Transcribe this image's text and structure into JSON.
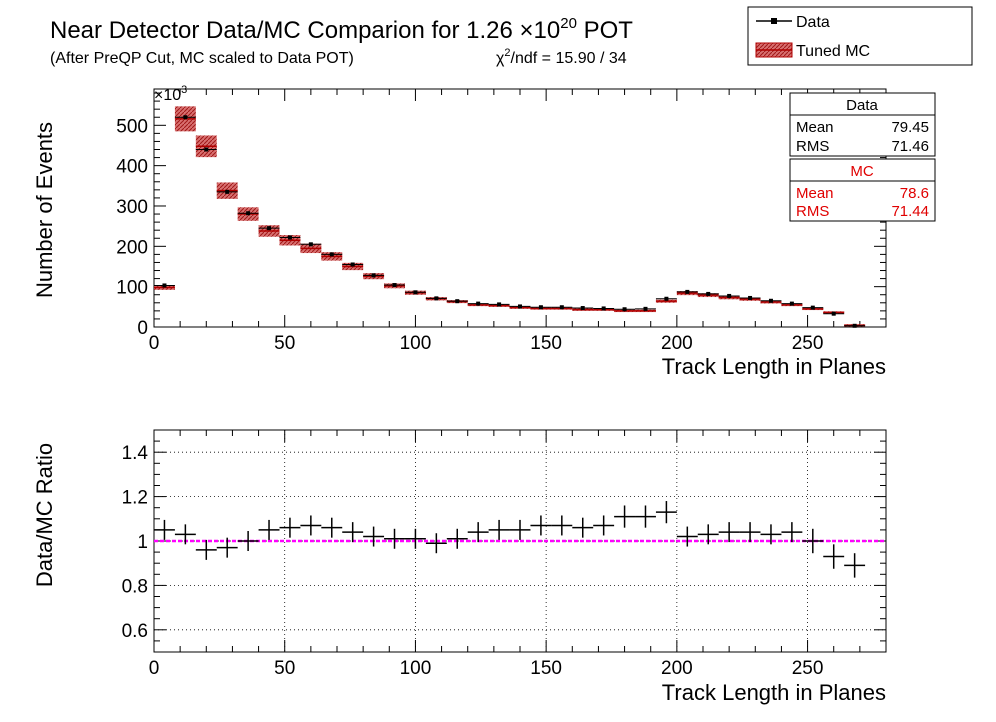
{
  "title": {
    "main": "Near Detector Data/MC Comparion for 1.26 ×10",
    "exp": "20",
    "suffix": " POT",
    "subtitle": "(After PreQP Cut, MC scaled to Data POT)",
    "chi_prefix": "χ",
    "chi_sup": "2",
    "chi_rest": "/ndf = 15.90 / 34"
  },
  "legend": {
    "data_label": "Data",
    "mc_label": "Tuned MC"
  },
  "stats": {
    "data": {
      "header": "Data",
      "mean_label": "Mean",
      "mean": "79.45",
      "rms_label": "RMS",
      "rms": "71.46"
    },
    "mc": {
      "header": "MC",
      "mean_label": "Mean",
      "mean": "78.6",
      "rms_label": "RMS",
      "rms": "71.44"
    }
  },
  "colors": {
    "mc_fill": "#c84040",
    "mc_line": "#b00000",
    "ratio_line": "#ff00ff",
    "stats_mc_text": "#e00000"
  },
  "chart_data": [
    {
      "type": "bar",
      "xlabel": "Track Length in Planes",
      "ylabel": "Number of Events",
      "y_multiplier_label": "×10",
      "y_multiplier_exp": "3",
      "xlim": [
        0,
        280
      ],
      "ylim": [
        0,
        590
      ],
      "xticks": [
        0,
        50,
        100,
        150,
        200,
        250
      ],
      "yticks": [
        0,
        100,
        200,
        300,
        400,
        500
      ],
      "bin_width": 8,
      "x": [
        4,
        12,
        20,
        28,
        36,
        44,
        52,
        60,
        68,
        76,
        84,
        92,
        100,
        108,
        116,
        124,
        132,
        140,
        148,
        156,
        164,
        172,
        180,
        188,
        196,
        204,
        212,
        220,
        228,
        236,
        244,
        252,
        260,
        268,
        276
      ],
      "series": [
        {
          "name": "Data",
          "values": [
            103,
            520,
            440,
            335,
            282,
            245,
            222,
            205,
            180,
            155,
            128,
            104,
            86,
            71,
            64,
            58,
            56,
            51,
            49,
            49,
            47,
            46,
            44,
            45,
            70,
            87,
            82,
            77,
            72,
            65,
            58,
            48,
            33,
            3,
            0
          ]
        },
        {
          "name": "Tuned MC",
          "values": [
            98,
            516,
            448,
            338,
            280,
            238,
            215,
            195,
            175,
            150,
            126,
            102,
            85,
            70,
            63,
            55,
            53,
            48,
            46,
            46,
            43,
            43,
            40,
            40,
            64,
            84,
            79,
            73,
            69,
            62,
            55,
            45,
            36,
            4,
            0
          ]
        }
      ]
    },
    {
      "type": "scatter",
      "xlabel": "Track Length in Planes",
      "ylabel": "Data/MC Ratio",
      "xlim": [
        0,
        280
      ],
      "ylim": [
        0.5,
        1.5
      ],
      "xticks": [
        0,
        50,
        100,
        150,
        200,
        250
      ],
      "yticks": [
        0.6,
        0.8,
        1,
        1.2,
        1.4
      ],
      "grid": true,
      "reference_line": 1,
      "x": [
        4,
        12,
        20,
        28,
        36,
        44,
        52,
        60,
        68,
        76,
        84,
        92,
        100,
        108,
        116,
        124,
        132,
        140,
        148,
        156,
        164,
        172,
        180,
        188,
        196,
        204,
        212,
        220,
        228,
        236,
        244,
        252,
        260,
        268
      ],
      "series": [
        {
          "name": "",
          "values": [
            1.05,
            1.03,
            0.96,
            0.97,
            1.0,
            1.05,
            1.06,
            1.07,
            1.06,
            1.04,
            1.02,
            1.01,
            1.01,
            0.99,
            1.01,
            1.04,
            1.05,
            1.05,
            1.07,
            1.07,
            1.06,
            1.07,
            1.11,
            1.11,
            1.13,
            1.02,
            1.03,
            1.04,
            1.04,
            1.03,
            1.04,
            1.0,
            0.93,
            0.89
          ]
        }
      ]
    }
  ]
}
